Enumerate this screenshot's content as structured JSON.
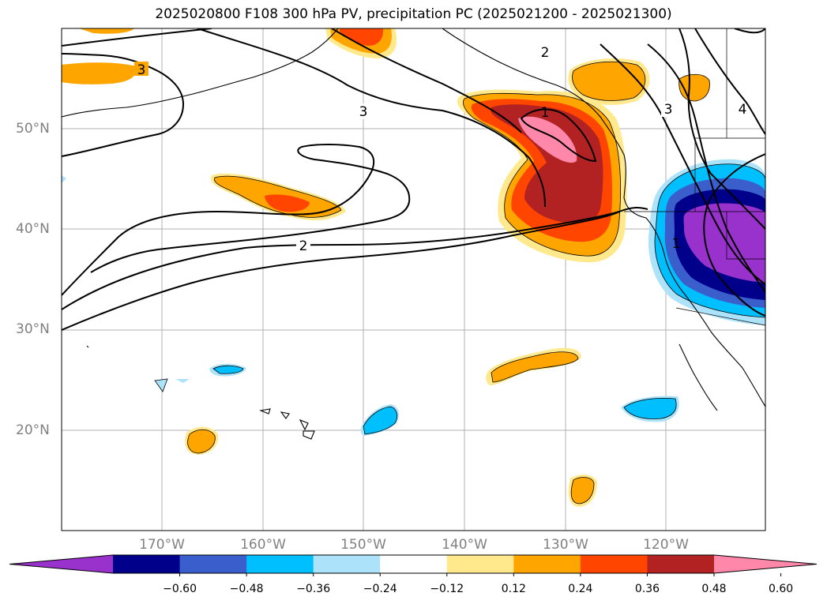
{
  "title": "2025020800 F108 300 hPa PV, precipitation PC (2025021200 - 2025021300)",
  "lat_labels": [
    "50°N",
    "40°N",
    "30°N",
    "20°N"
  ],
  "lon_labels": [
    "170°W",
    "160°W",
    "150°W",
    "140°W",
    "130°W",
    "120°W"
  ],
  "contour_labels": [
    "3",
    "3",
    "3",
    "2",
    "1",
    "2",
    "4",
    "1"
  ],
  "colorbar": {
    "ticks": [
      "−0.60",
      "−0.48",
      "−0.36",
      "−0.24",
      "−0.12",
      "0.12",
      "0.24",
      "0.36",
      "0.48",
      "0.60"
    ],
    "colors": [
      "#9932CC",
      "#00008B",
      "#3A5FCD",
      "#00BFFF",
      "#ADE3FA",
      "#FFFFFF",
      "#FFE98C",
      "#FFA500",
      "#FF4500",
      "#B22222",
      "#FF88AA"
    ]
  }
}
